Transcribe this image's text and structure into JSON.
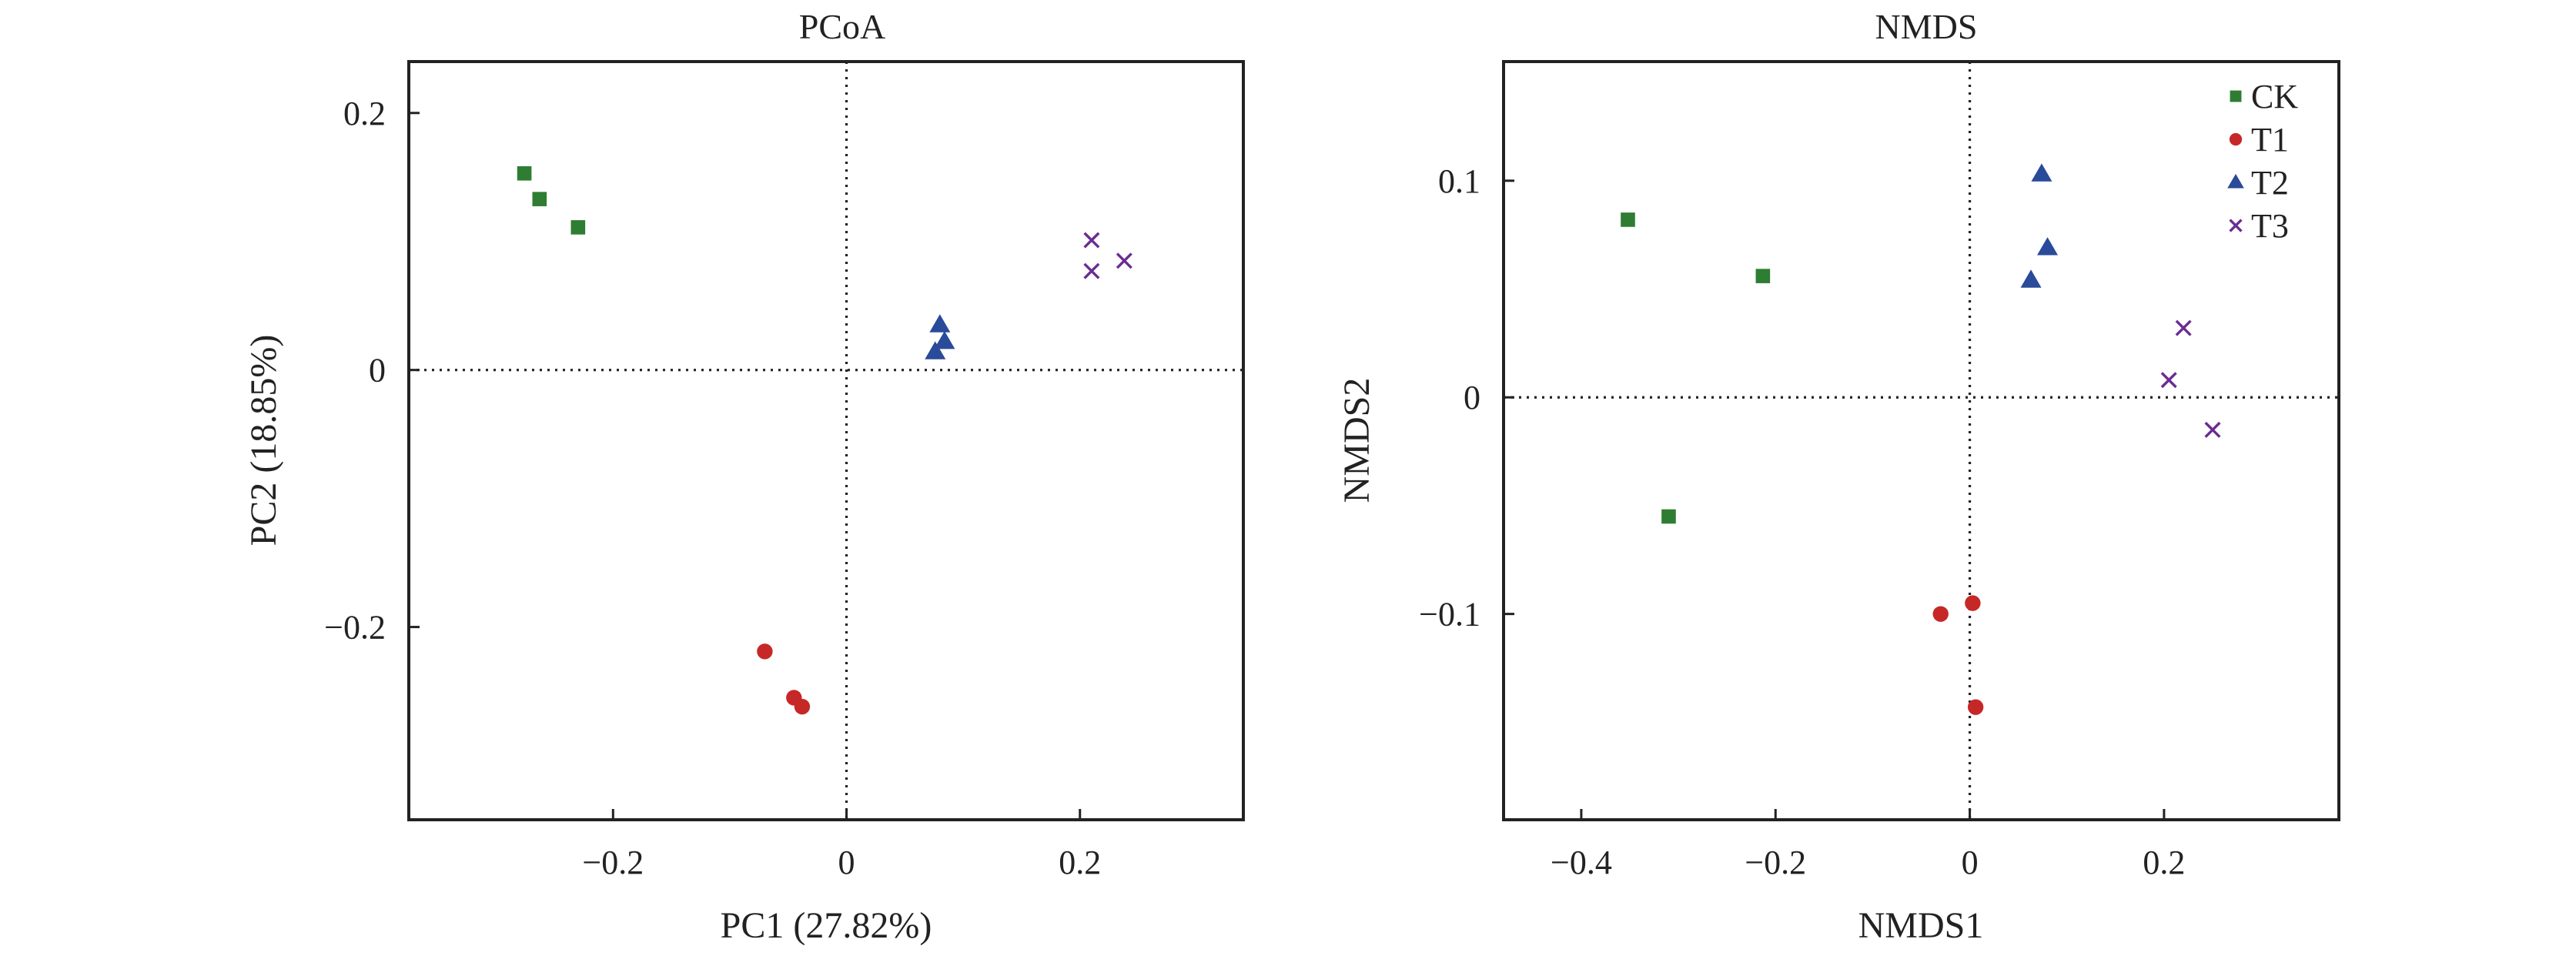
{
  "figure": {
    "panels": [
      {
        "title": "PCoA",
        "xlabel": "PC1 (27.82%)",
        "ylabel": "PC2 (18.85%)",
        "legend": "none"
      },
      {
        "title": "NMDS",
        "xlabel": "NMDS1",
        "ylabel": "NMDS2",
        "legend": "top-right"
      }
    ]
  },
  "styles": {
    "CK": {
      "color": "#2e7d32",
      "marker": "square"
    },
    "T1": {
      "color": "#c62828",
      "marker": "circle"
    },
    "T2": {
      "color": "#2a4a9a",
      "marker": "triangle"
    },
    "T3": {
      "color": "#6a2c91",
      "marker": "x"
    }
  },
  "chart_data": [
    {
      "type": "scatter",
      "title": "PCoA",
      "xlabel": "PC1 (27.82%)",
      "ylabel": "PC2 (18.85%)",
      "xlim": [
        -0.375,
        0.34
      ],
      "ylim": [
        -0.35,
        0.24
      ],
      "xticks": [
        -0.2,
        0,
        0.2
      ],
      "xtick_labels": [
        "−0.2",
        "0",
        "0.2"
      ],
      "yticks": [
        -0.2,
        0,
        0.2
      ],
      "ytick_labels": [
        "−0.2",
        "0",
        "0.2"
      ],
      "grid": false,
      "reference_lines": {
        "x": 0,
        "y": 0,
        "style": "dotted"
      },
      "legend": "none",
      "series": [
        {
          "name": "CK",
          "points": [
            [
              -0.276,
              0.153
            ],
            [
              -0.263,
              0.133
            ],
            [
              -0.23,
              0.111
            ]
          ]
        },
        {
          "name": "T1",
          "points": [
            [
              -0.07,
              -0.219
            ],
            [
              -0.045,
              -0.255
            ],
            [
              -0.038,
              -0.262
            ]
          ]
        },
        {
          "name": "T2",
          "points": [
            [
              0.076,
              0.014
            ],
            [
              0.08,
              0.035
            ],
            [
              0.084,
              0.022
            ]
          ]
        },
        {
          "name": "T3",
          "points": [
            [
              0.21,
              0.101
            ],
            [
              0.21,
              0.077
            ],
            [
              0.238,
              0.085
            ]
          ]
        }
      ]
    },
    {
      "type": "scatter",
      "title": "NMDS",
      "xlabel": "NMDS1",
      "ylabel": "NMDS2",
      "xlim": [
        -0.48,
        0.38
      ],
      "ylim": [
        -0.195,
        0.155
      ],
      "xticks": [
        -0.4,
        -0.2,
        0,
        0.2
      ],
      "xtick_labels": [
        "−0.4",
        "−0.2",
        "0",
        "0.2"
      ],
      "yticks": [
        -0.1,
        0,
        0.1
      ],
      "ytick_labels": [
        "−0.1",
        "0",
        "0.1"
      ],
      "grid": false,
      "reference_lines": {
        "x": 0,
        "y": 0,
        "style": "dotted"
      },
      "legend": "top-right",
      "series": [
        {
          "name": "CK",
          "points": [
            [
              -0.352,
              0.082
            ],
            [
              -0.213,
              0.056
            ],
            [
              -0.31,
              -0.055
            ]
          ]
        },
        {
          "name": "T1",
          "points": [
            [
              -0.03,
              -0.1
            ],
            [
              0.003,
              -0.095
            ],
            [
              0.006,
              -0.143
            ]
          ]
        },
        {
          "name": "T2",
          "points": [
            [
              0.063,
              0.054
            ],
            [
              0.074,
              0.103
            ],
            [
              0.08,
              0.069
            ]
          ]
        },
        {
          "name": "T3",
          "points": [
            [
              0.205,
              0.008
            ],
            [
              0.22,
              0.032
            ],
            [
              0.25,
              -0.015
            ]
          ]
        }
      ]
    }
  ]
}
